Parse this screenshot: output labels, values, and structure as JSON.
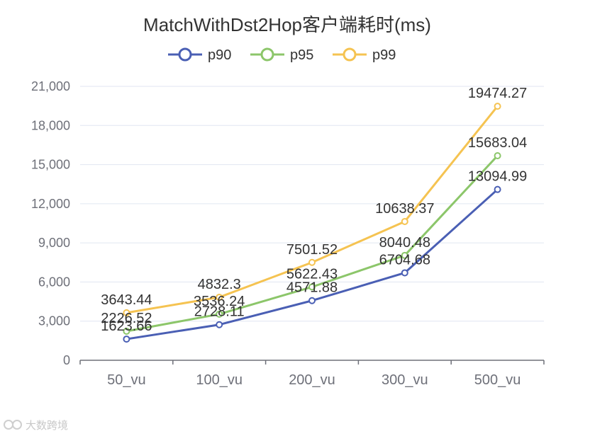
{
  "chart_data": {
    "type": "line",
    "title": "MatchWithDst2Hop客户端耗时(ms)",
    "categories": [
      "50_vu",
      "100_vu",
      "200_vu",
      "300_vu",
      "500_vu"
    ],
    "ylim": [
      0,
      21000
    ],
    "yticks": [
      0,
      3000,
      6000,
      9000,
      12000,
      15000,
      18000,
      21000
    ],
    "ytick_labels": [
      "0",
      "3,000",
      "6,000",
      "9,000",
      "12,000",
      "15,000",
      "18,000",
      "21,000"
    ],
    "grid": true,
    "legend_position": "top-center",
    "series": [
      {
        "name": "p90",
        "color": "#4a5fb4",
        "values": [
          1623.66,
          2728.11,
          4571.88,
          6704.68,
          13094.99
        ],
        "labels": [
          "1623.66",
          "2728.11",
          "4571.88",
          "6704.68",
          "13094.99"
        ]
      },
      {
        "name": "p95",
        "color": "#8cc66a",
        "values": [
          2226.52,
          3536.24,
          5622.43,
          8040.48,
          15683.04
        ],
        "labels": [
          "2226.52",
          "3536.24",
          "5622.43",
          "8040.48",
          "15683.04"
        ]
      },
      {
        "name": "p99",
        "color": "#f5c351",
        "values": [
          3643.44,
          4832.3,
          7501.52,
          10638.37,
          19474.27
        ],
        "labels": [
          "3643.44",
          "4832.3",
          "7501.52",
          "10638.37",
          "19474.27"
        ]
      }
    ]
  },
  "watermark": {
    "text": "大数跨境",
    "icon": "logo-icon"
  }
}
